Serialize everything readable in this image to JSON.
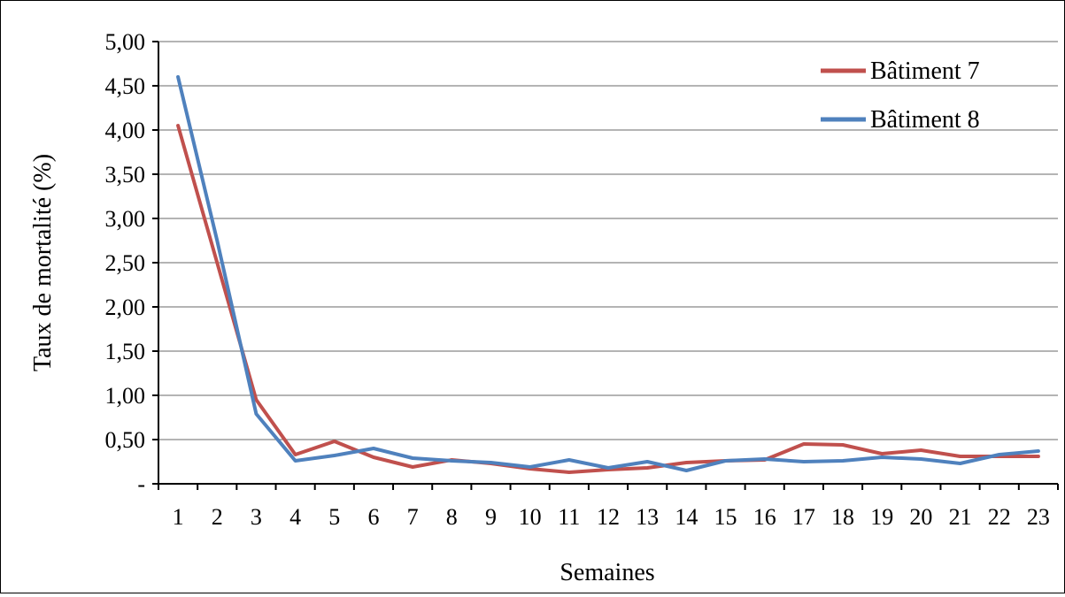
{
  "chart_data": {
    "type": "line",
    "title": "",
    "xlabel": "Semaines",
    "ylabel": "Taux de mortalité (%)",
    "categories": [
      "1",
      "2",
      "3",
      "4",
      "5",
      "6",
      "7",
      "8",
      "9",
      "10",
      "11",
      "12",
      "13",
      "14",
      "15",
      "16",
      "17",
      "18",
      "19",
      "20",
      "21",
      "22",
      "23"
    ],
    "ylim": [
      0,
      5
    ],
    "ytick_labels": [
      "-",
      "0,50",
      "1,00",
      "1,50",
      "2,00",
      "2,50",
      "3,00",
      "3,50",
      "4,00",
      "4,50",
      "5,00"
    ],
    "grid": true,
    "legend_position": "top-right",
    "series": [
      {
        "name": "Bâtiment 7",
        "color": "#c0504d",
        "values": [
          4.05,
          2.5,
          0.95,
          0.33,
          0.48,
          0.3,
          0.19,
          0.27,
          0.23,
          0.17,
          0.13,
          0.16,
          0.18,
          0.24,
          0.26,
          0.27,
          0.45,
          0.44,
          0.34,
          0.38,
          0.31,
          0.31,
          0.31
        ]
      },
      {
        "name": "Bâtiment 8",
        "color": "#4f81bd",
        "values": [
          4.6,
          2.75,
          0.79,
          0.26,
          0.32,
          0.4,
          0.29,
          0.26,
          0.24,
          0.19,
          0.27,
          0.18,
          0.25,
          0.15,
          0.26,
          0.28,
          0.25,
          0.26,
          0.3,
          0.28,
          0.23,
          0.33,
          0.37
        ]
      }
    ]
  }
}
